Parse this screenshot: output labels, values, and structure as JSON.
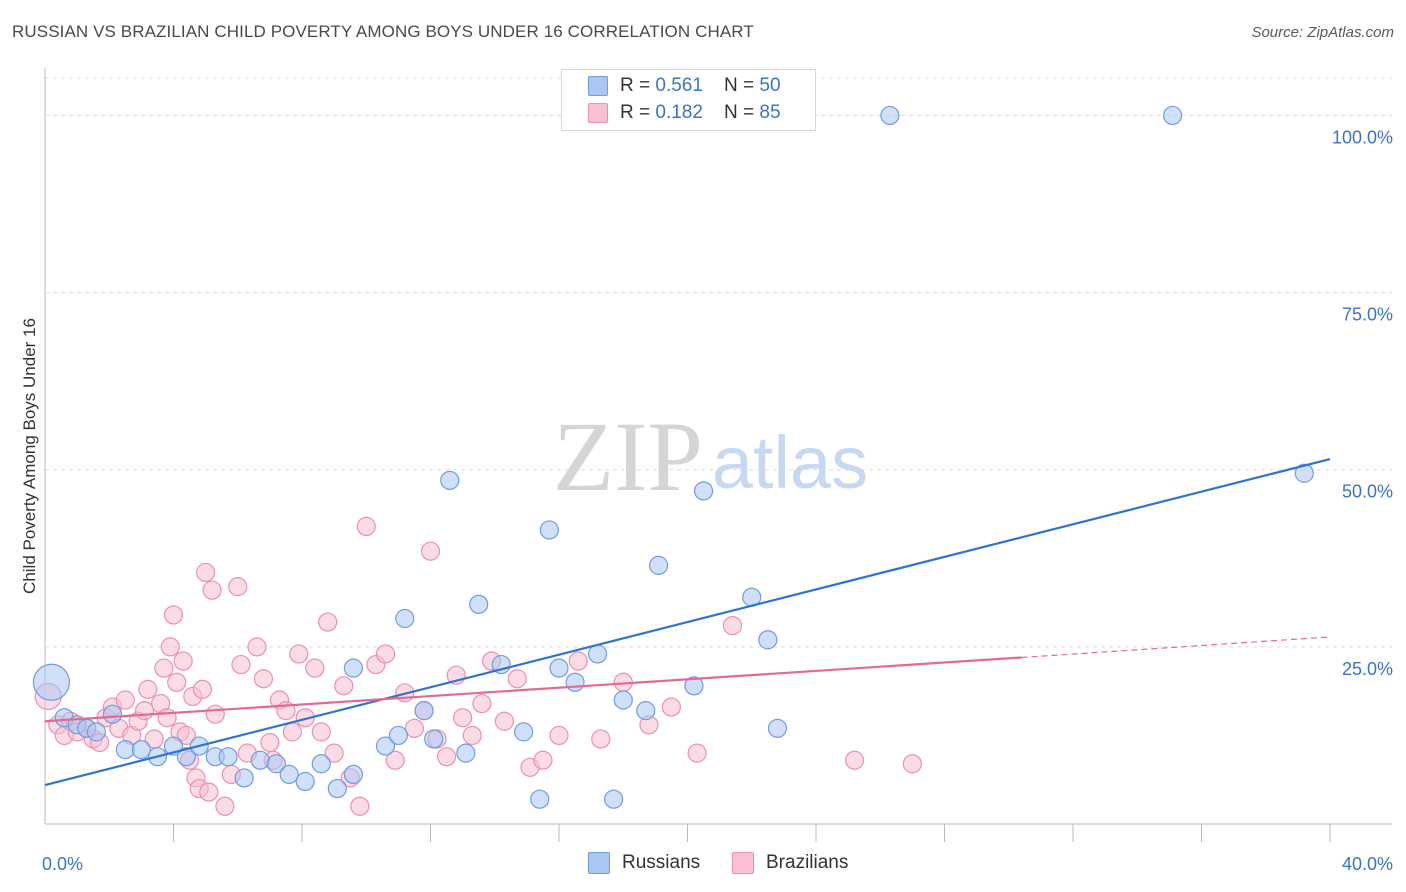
{
  "header": {
    "title": "RUSSIAN VS BRAZILIAN CHILD POVERTY AMONG BOYS UNDER 16 CORRELATION CHART",
    "source": "Source: ZipAtlas.com"
  },
  "watermark": {
    "zip": "ZIP",
    "atlas": "atlas"
  },
  "legend": {
    "russians": {
      "r_label": "R = ",
      "r_value": "0.561",
      "n_label": "N = ",
      "n_value": "50"
    },
    "brazilians": {
      "r_label": "R = ",
      "r_value": "0.182",
      "n_label": "N = ",
      "n_value": "85"
    }
  },
  "bottom_legend": {
    "russians": "Russians",
    "brazilians": "Brazilians"
  },
  "chart_data": {
    "type": "scatter",
    "title": "RUSSIAN VS BRAZILIAN CHILD POVERTY AMONG BOYS UNDER 16 CORRELATION CHART",
    "ylabel": "Child Poverty Among Boys Under 16",
    "xlabel": "",
    "xlim": [
      0,
      40
    ],
    "ylim": [
      0,
      105
    ],
    "x_tick_labels": [
      "0.0%",
      "40.0%"
    ],
    "y_tick_labels": [
      "25.0%",
      "50.0%",
      "75.0%",
      "100.0%"
    ],
    "y_ticks": [
      25,
      50,
      75,
      100
    ],
    "grid": "horizontal dashed",
    "legend_position": "top-center",
    "colors": {
      "russians_fill": "#a9c7f2",
      "russians_stroke": "#6d9ee0",
      "russians_line": "#2f74cf",
      "brazilians_fill": "#f8c0d2",
      "brazilians_stroke": "#ee8fae",
      "brazilians_line": "#e26a96",
      "tick_label": "#3a74c9"
    },
    "series": [
      {
        "name": "Russians",
        "r": 0.561,
        "n": 50,
        "trend": {
          "x": [
            0,
            40
          ],
          "y": [
            5.5,
            51.5
          ]
        },
        "points": [
          [
            0.2,
            20.0
          ],
          [
            0.6,
            15.0
          ],
          [
            1.0,
            14.0
          ],
          [
            1.3,
            13.5
          ],
          [
            1.6,
            13.0
          ],
          [
            2.1,
            15.5
          ],
          [
            2.5,
            10.5
          ],
          [
            3.0,
            10.5
          ],
          [
            3.5,
            9.5
          ],
          [
            4.0,
            11.0
          ],
          [
            4.4,
            9.5
          ],
          [
            4.8,
            11.0
          ],
          [
            5.3,
            9.5
          ],
          [
            5.7,
            9.5
          ],
          [
            6.2,
            6.5
          ],
          [
            6.7,
            9.0
          ],
          [
            7.2,
            8.5
          ],
          [
            7.6,
            7.0
          ],
          [
            8.1,
            6.0
          ],
          [
            8.6,
            8.5
          ],
          [
            9.1,
            5.0
          ],
          [
            9.6,
            7.0
          ],
          [
            9.6,
            22.0
          ],
          [
            10.6,
            11.0
          ],
          [
            11.0,
            12.5
          ],
          [
            11.2,
            29.0
          ],
          [
            11.8,
            16.0
          ],
          [
            12.1,
            12.0
          ],
          [
            12.6,
            48.5
          ],
          [
            13.1,
            10.0
          ],
          [
            13.5,
            31.0
          ],
          [
            14.2,
            22.5
          ],
          [
            14.9,
            13.0
          ],
          [
            15.4,
            3.5
          ],
          [
            15.7,
            41.5
          ],
          [
            16.0,
            22.0
          ],
          [
            16.5,
            20.0
          ],
          [
            17.2,
            24.0
          ],
          [
            17.7,
            3.5
          ],
          [
            18.0,
            17.5
          ],
          [
            18.7,
            16.0
          ],
          [
            19.1,
            36.5
          ],
          [
            20.2,
            19.5
          ],
          [
            20.5,
            47.0
          ],
          [
            22.0,
            32.0
          ],
          [
            22.5,
            26.0
          ],
          [
            22.8,
            13.5
          ],
          [
            26.3,
            100.0
          ],
          [
            35.1,
            100.0
          ],
          [
            39.2,
            49.5
          ]
        ]
      },
      {
        "name": "Brazilians",
        "r": 0.182,
        "n": 85,
        "trend": {
          "x": [
            0,
            30.4
          ],
          "y": [
            14.5,
            23.5
          ]
        },
        "trend_dashed": {
          "x": [
            30.4,
            40
          ],
          "y": [
            23.5,
            26.4
          ]
        },
        "points": [
          [
            0.1,
            18.0
          ],
          [
            0.4,
            14.0
          ],
          [
            0.6,
            12.5
          ],
          [
            0.8,
            14.5
          ],
          [
            1.0,
            13.0
          ],
          [
            1.3,
            13.5
          ],
          [
            1.5,
            12.0
          ],
          [
            1.7,
            11.5
          ],
          [
            1.9,
            15.0
          ],
          [
            2.1,
            16.5
          ],
          [
            2.3,
            13.5
          ],
          [
            2.5,
            17.5
          ],
          [
            2.7,
            12.5
          ],
          [
            2.9,
            14.5
          ],
          [
            3.1,
            16.0
          ],
          [
            3.2,
            19.0
          ],
          [
            3.4,
            12.0
          ],
          [
            3.6,
            17.0
          ],
          [
            3.7,
            22.0
          ],
          [
            3.8,
            15.0
          ],
          [
            3.9,
            25.0
          ],
          [
            4.0,
            29.5
          ],
          [
            4.1,
            20.0
          ],
          [
            4.2,
            13.0
          ],
          [
            4.3,
            23.0
          ],
          [
            4.4,
            12.5
          ],
          [
            4.5,
            9.0
          ],
          [
            4.6,
            18.0
          ],
          [
            4.7,
            6.5
          ],
          [
            4.8,
            5.0
          ],
          [
            4.9,
            19.0
          ],
          [
            5.0,
            35.5
          ],
          [
            5.1,
            4.5
          ],
          [
            5.2,
            33.0
          ],
          [
            5.3,
            15.5
          ],
          [
            5.6,
            2.5
          ],
          [
            5.8,
            7.0
          ],
          [
            6.0,
            33.5
          ],
          [
            6.1,
            22.5
          ],
          [
            6.3,
            10.0
          ],
          [
            6.6,
            25.0
          ],
          [
            6.8,
            20.5
          ],
          [
            7.0,
            11.5
          ],
          [
            7.1,
            9.0
          ],
          [
            7.3,
            17.5
          ],
          [
            7.5,
            16.0
          ],
          [
            7.7,
            13.0
          ],
          [
            7.9,
            24.0
          ],
          [
            8.1,
            15.0
          ],
          [
            8.4,
            22.0
          ],
          [
            8.6,
            13.0
          ],
          [
            8.8,
            28.5
          ],
          [
            9.0,
            10.0
          ],
          [
            9.3,
            19.5
          ],
          [
            9.5,
            6.5
          ],
          [
            9.8,
            2.5
          ],
          [
            10.0,
            42.0
          ],
          [
            10.3,
            22.5
          ],
          [
            10.6,
            24.0
          ],
          [
            10.9,
            9.0
          ],
          [
            11.2,
            18.5
          ],
          [
            11.5,
            13.5
          ],
          [
            11.8,
            16.0
          ],
          [
            12.0,
            38.5
          ],
          [
            12.2,
            12.0
          ],
          [
            12.5,
            9.5
          ],
          [
            12.8,
            21.0
          ],
          [
            13.0,
            15.0
          ],
          [
            13.3,
            12.5
          ],
          [
            13.6,
            17.0
          ],
          [
            13.9,
            23.0
          ],
          [
            14.3,
            14.5
          ],
          [
            14.7,
            20.5
          ],
          [
            15.1,
            8.0
          ],
          [
            15.5,
            9.0
          ],
          [
            16.0,
            12.5
          ],
          [
            16.6,
            23.0
          ],
          [
            17.3,
            12.0
          ],
          [
            18.0,
            20.0
          ],
          [
            18.8,
            14.0
          ],
          [
            19.5,
            16.5
          ],
          [
            20.3,
            10.0
          ],
          [
            21.4,
            28.0
          ],
          [
            25.2,
            9.0
          ],
          [
            27.0,
            8.5
          ]
        ]
      }
    ]
  }
}
